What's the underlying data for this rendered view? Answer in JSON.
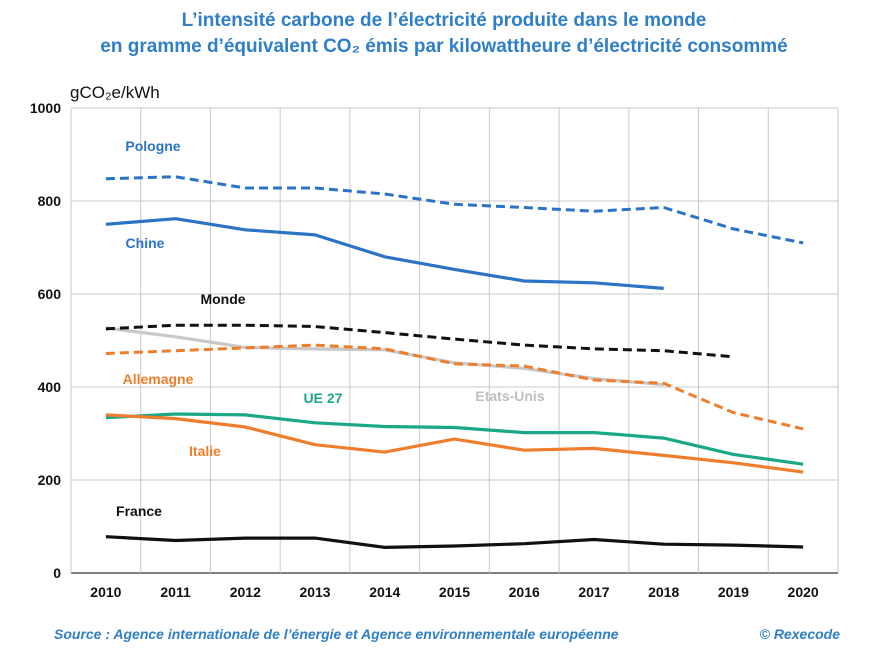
{
  "chart_data": {
    "type": "line",
    "title_line1": "L’intensité carbone de l’électricité produite dans le monde",
    "title_line2": "en gramme d’équivalent CO₂ émis par kilowattheure d’électricité consommé",
    "ylabel": "gCO₂e/kWh",
    "xlabel": "",
    "ylim": [
      0,
      1000
    ],
    "yticks": [
      "0",
      "200",
      "400",
      "600",
      "800",
      "1000"
    ],
    "ytick_values": [
      0,
      200,
      400,
      600,
      800,
      1000
    ],
    "x": [
      "2010",
      "2011",
      "2012",
      "2013",
      "2014",
      "2015",
      "2016",
      "2017",
      "2018",
      "2019",
      "2020"
    ],
    "grid": true,
    "series": [
      {
        "name": "Pologne",
        "color": "#2b73c4",
        "dashed": true,
        "values": [
          848,
          852,
          828,
          828,
          815,
          793,
          786,
          778,
          786,
          740,
          710
        ]
      },
      {
        "name": "Chine",
        "color": "#2b73c4",
        "dashed": false,
        "values": [
          750,
          762,
          738,
          727,
          680,
          653,
          628,
          624,
          612,
          null,
          null
        ]
      },
      {
        "name": "Etats-Unis",
        "color": "#c8c8c8",
        "dashed": false,
        "values": [
          527,
          508,
          485,
          482,
          480,
          452,
          440,
          418,
          405,
          null,
          null
        ]
      },
      {
        "name": "Monde",
        "color": "#111111",
        "dashed": true,
        "values": [
          525,
          533,
          533,
          530,
          517,
          503,
          490,
          482,
          478,
          465,
          null
        ]
      },
      {
        "name": "Allemagne",
        "color": "#ee7d2c",
        "dashed": true,
        "values": [
          472,
          478,
          484,
          490,
          482,
          450,
          445,
          415,
          408,
          345,
          310
        ]
      },
      {
        "name": "UE 27",
        "color": "#1aa889",
        "dashed": false,
        "values": [
          334,
          342,
          340,
          323,
          315,
          313,
          302,
          302,
          290,
          255,
          234
        ]
      },
      {
        "name": "Italie",
        "color": "#ee7d2c",
        "dashed": false,
        "values": [
          340,
          332,
          314,
          276,
          260,
          288,
          264,
          268,
          253,
          237,
          217
        ]
      },
      {
        "name": "France",
        "color": "#111111",
        "dashed": false,
        "values": [
          78,
          70,
          75,
          75,
          55,
          58,
          63,
          72,
          62,
          60,
          56
        ]
      }
    ]
  },
  "source": "Source : Agence internationale de l’énergie et Agence environnementale européenne",
  "copyright": "© Rexecode"
}
